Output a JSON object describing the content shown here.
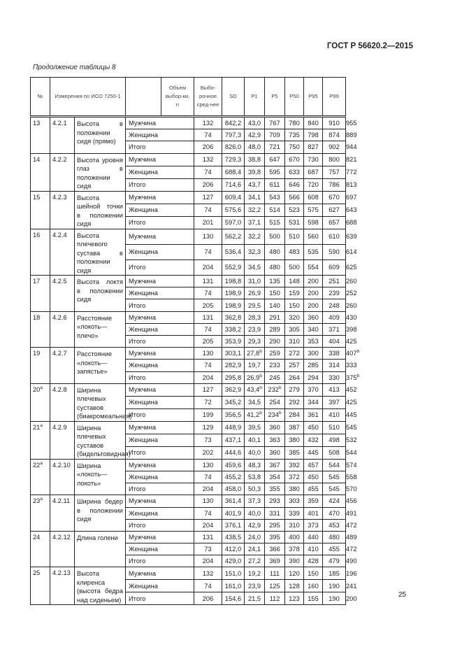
{
  "header": {
    "title": "ГОСТ Р 56620.2—2015",
    "caption": "Продолжение таблицы 8",
    "page_number": "25"
  },
  "table": {
    "columns": [
      "№",
      "Измерения по ИСО 7250-1",
      "",
      "Объем выбор-ки, n",
      "Выбо-рочное сред-нее",
      "SD",
      "P1",
      "P5",
      "P50",
      "P95",
      "P99"
    ],
    "groups": [
      {
        "no": "13",
        "code": "4.2.1",
        "desc": "Высота в положении сидя (прямо)",
        "rows": [
          [
            "Мужчина",
            "132",
            "842,2",
            "43,0",
            "767",
            "780",
            "840",
            "910",
            "955"
          ],
          [
            "Женщина",
            "74",
            "797,3",
            "42,9",
            "709",
            "735",
            "798",
            "874",
            "889"
          ],
          [
            "Итого",
            "206",
            "826,0",
            "48,0",
            "721",
            "750",
            "827",
            "902",
            "944"
          ]
        ]
      },
      {
        "no": "14",
        "code": "4.2.2",
        "desc": "Высота уровня глаз в положении сидя",
        "rows": [
          [
            "Мужчина",
            "132",
            "729,3",
            "38,8",
            "647",
            "670",
            "730",
            "800",
            "821"
          ],
          [
            "Женщина",
            "74",
            "688,4",
            "39,8",
            "595",
            "633",
            "687",
            "757",
            "772"
          ],
          [
            "Итого",
            "206",
            "714,6",
            "43,7",
            "611",
            "646",
            "720",
            "786",
            "813"
          ]
        ]
      },
      {
        "no": "15",
        "code": "4.2.3",
        "desc": "Высота шейной точки в положении сидя",
        "rows": [
          [
            "Мужчина",
            "127",
            "609,4",
            "34,1",
            "543",
            "566",
            "608",
            "670",
            "697"
          ],
          [
            "Женщина",
            "74",
            "575,6",
            "32,2",
            "514",
            "523",
            "575",
            "627",
            "643"
          ],
          [
            "Итого",
            "201",
            "597,0",
            "37,1",
            "515",
            "531",
            "598",
            "657",
            "688"
          ]
        ]
      },
      {
        "no": "16",
        "code": "4.2.4",
        "desc": "Высота плечевого сустава в положении сидя",
        "rows": [
          [
            "Мужчина",
            "130",
            "562,2",
            "32,2",
            "500",
            "510",
            "560",
            "610",
            "639"
          ],
          [
            "Женщина",
            "74",
            "536,4",
            "32,3",
            "480",
            "483",
            "535",
            "590",
            "614"
          ],
          [
            "Итого",
            "204",
            "552,9",
            "34,5",
            "480",
            "500",
            "554",
            "609",
            "625"
          ]
        ]
      },
      {
        "no": "17",
        "code": "4.2.5",
        "desc": "Высота локтя в положении сидя",
        "rows": [
          [
            "Мужчина",
            "131",
            "198,8",
            "31,0",
            "135",
            "148",
            "200",
            "251",
            "260"
          ],
          [
            "Женщина",
            "74",
            "198,9",
            "26,9",
            "150",
            "159",
            "200",
            "239",
            "252"
          ],
          [
            "Итого",
            "205",
            "198,9",
            "29,5",
            "140",
            "150",
            "200",
            "248",
            "260"
          ]
        ]
      },
      {
        "no": "18",
        "code": "4.2.6",
        "desc": "Расстояние «локоть—плечо»",
        "rows": [
          [
            "Мужчина",
            "131",
            "362,8",
            "28,3",
            "291",
            "320",
            "360",
            "409",
            "430"
          ],
          [
            "Женщина",
            "74",
            "338,2",
            "23,9",
            "289",
            "305",
            "340",
            "371",
            "398"
          ],
          [
            "Итого",
            "205",
            "353,9",
            "29,3",
            "290",
            "310",
            "353",
            "404",
            "425"
          ]
        ]
      },
      {
        "no": "19",
        "code": "4.2.7",
        "desc": "Расстояние «локоть—запястье»",
        "rows": [
          [
            "Мужчина",
            "130",
            "303,1",
            "27,8^b",
            "259",
            "272",
            "300",
            "338",
            "407^b"
          ],
          [
            "Женщина",
            "74",
            "282,9",
            "19,7",
            "233",
            "257",
            "285",
            "314",
            "333"
          ],
          [
            "Итого",
            "204",
            "295,8",
            "26,9^b",
            "245",
            "264",
            "294",
            "330",
            "375^b"
          ]
        ]
      },
      {
        "no": "20^a",
        "code": "4.2.8",
        "desc": "Ширина плечевых суставов (биакромеальная)",
        "rows": [
          [
            "Мужчина",
            "127",
            "362,9",
            "43,4^b",
            "232^b",
            "279",
            "370",
            "413",
            "452"
          ],
          [
            "Женщина",
            "72",
            "345,2",
            "34,5",
            "254",
            "292",
            "344",
            "397",
            "425"
          ],
          [
            "Итого",
            "199",
            "356,5",
            "41,2^b",
            "234^b",
            "284",
            "361",
            "410",
            "445"
          ]
        ]
      },
      {
        "no": "21^a",
        "code": "4.2.9",
        "desc": "Ширина плечевых суставов (бидельтовидная)",
        "rows": [
          [
            "Мужчина",
            "129",
            "448,9",
            "39,5",
            "360",
            "387",
            "450",
            "510",
            "545"
          ],
          [
            "Женщина",
            "73",
            "437,1",
            "40,1",
            "363",
            "380",
            "432",
            "498",
            "532"
          ],
          [
            "Итого",
            "202",
            "444,6",
            "40,0",
            "360",
            "385",
            "445",
            "508",
            "544"
          ]
        ]
      },
      {
        "no": "22^a",
        "code": "4.2.10",
        "desc": "Ширина «локоть—локоть»",
        "rows": [
          [
            "Мужчина",
            "130",
            "459,6",
            "48,3",
            "367",
            "392",
            "457",
            "544",
            "574"
          ],
          [
            "Женщина",
            "74",
            "455,2",
            "53,8",
            "354",
            "372",
            "450",
            "545",
            "558"
          ],
          [
            "Итого",
            "204",
            "458,0",
            "50,3",
            "355",
            "380",
            "455",
            "545",
            "570"
          ]
        ]
      },
      {
        "no": "23^a",
        "code": "4.2.11",
        "desc": "Ширина бедер в положении сидя",
        "rows": [
          [
            "Мужчина",
            "130",
            "361,4",
            "37,3",
            "293",
            "303",
            "359",
            "424",
            "456"
          ],
          [
            "Женщина",
            "74",
            "401,9",
            "40,0",
            "331",
            "339",
            "401",
            "470",
            "491"
          ],
          [
            "Итого",
            "204",
            "376,1",
            "42,9",
            "295",
            "310",
            "373",
            "453",
            "472"
          ]
        ]
      },
      {
        "no": "24",
        "code": "4.2.12",
        "desc": "Длина голени",
        "rows": [
          [
            "Мужчина",
            "131",
            "438,5",
            "24,0",
            "395",
            "400",
            "440",
            "480",
            "489"
          ],
          [
            "Женщина",
            "73",
            "412,0",
            "24,1",
            "366",
            "378",
            "410",
            "455",
            "472"
          ],
          [
            "Итого",
            "204",
            "429,0",
            "27,2",
            "369",
            "390",
            "428",
            "479",
            "490"
          ]
        ]
      },
      {
        "no": "25",
        "code": "4.2.13",
        "desc": "Высота клиренса (высота бедра над сиденьем)",
        "rows": [
          [
            "Мужчина",
            "132",
            "151,0",
            "19,2",
            "111",
            "120",
            "150",
            "185",
            "196"
          ],
          [
            "Женщина",
            "74",
            "161,0",
            "23,9",
            "125",
            "128",
            "160",
            "190",
            "241"
          ],
          [
            "Итого",
            "206",
            "154,6",
            "21,5",
            "112",
            "123",
            "155",
            "190",
            "200"
          ]
        ]
      }
    ]
  }
}
